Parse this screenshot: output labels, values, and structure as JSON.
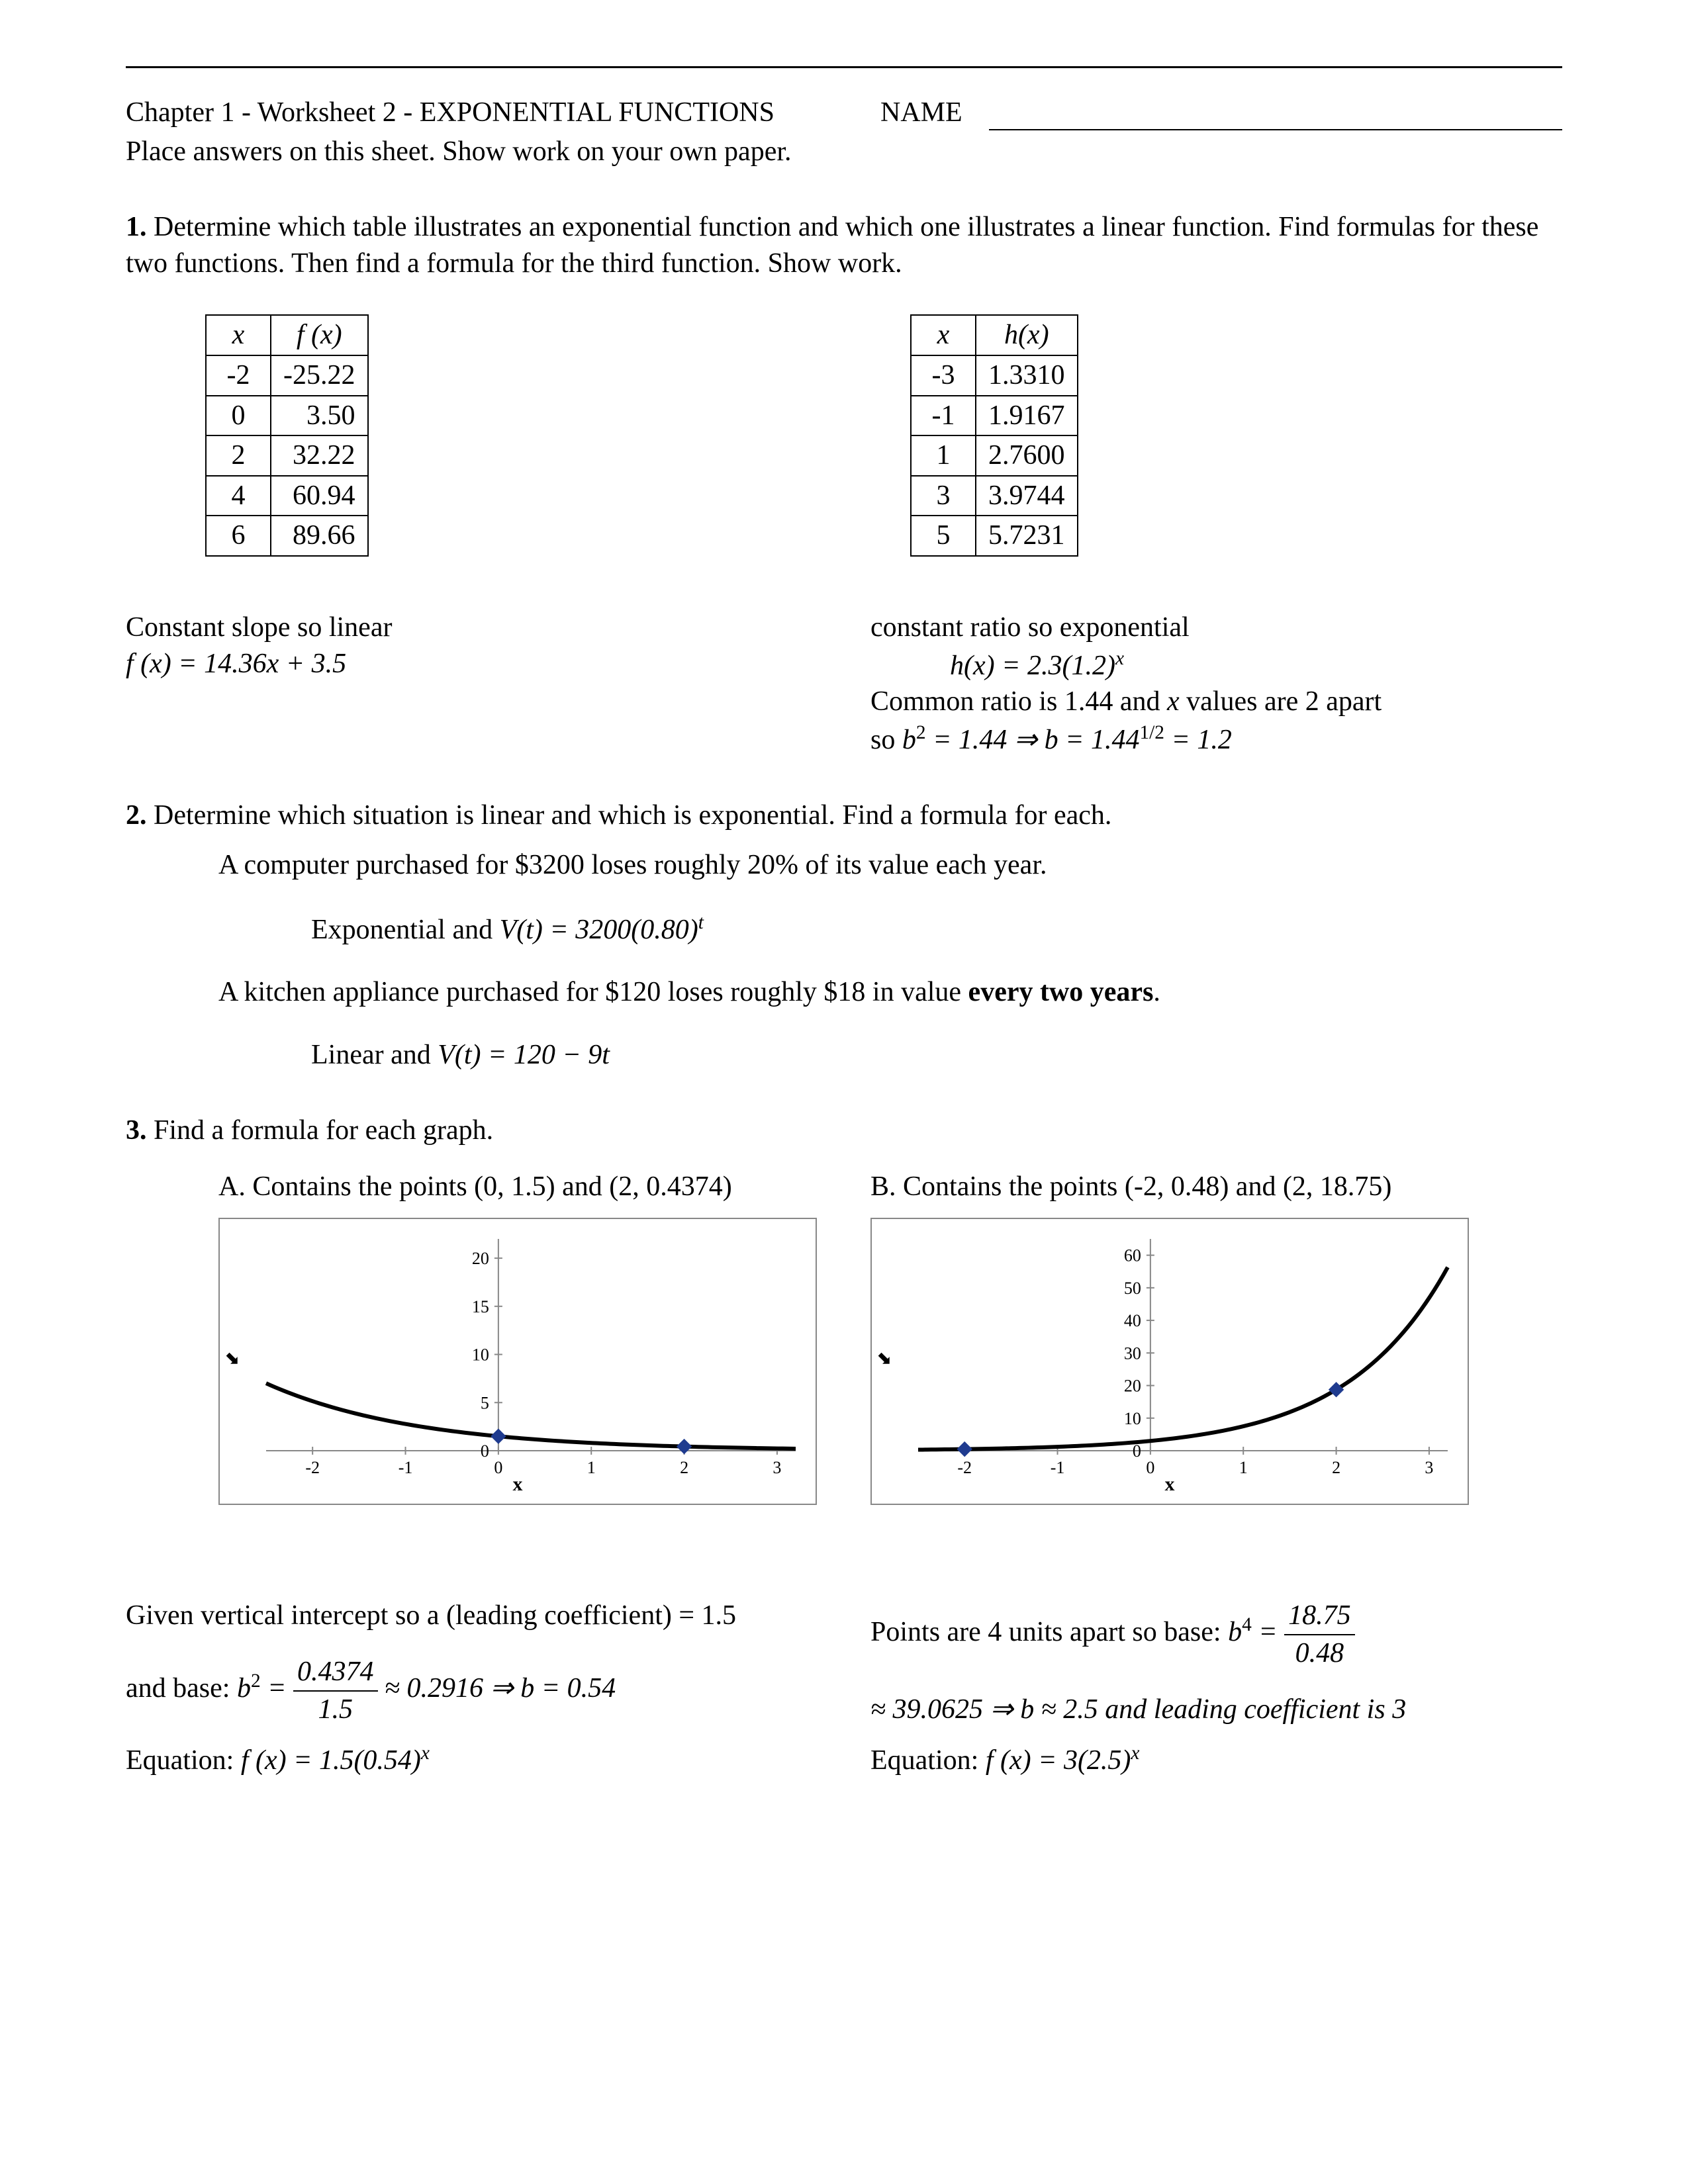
{
  "header": {
    "title": "Chapter 1 - Worksheet 2 - EXPONENTIAL FUNCTIONS",
    "name_label": "NAME",
    "instructions": "Place answers on this sheet.  Show work on your own paper."
  },
  "q1": {
    "prompt": "Determine which table illustrates an exponential function and which one illustrates a linear function. Find formulas for these two functions. Then find a formula for the third function.  Show work.",
    "tableA": {
      "x_header": "x",
      "y_header": "f (x)",
      "rows": [
        [
          "-2",
          "-25.22"
        ],
        [
          "0",
          "3.50"
        ],
        [
          "2",
          "32.22"
        ],
        [
          "4",
          "60.94"
        ],
        [
          "6",
          "89.66"
        ]
      ]
    },
    "tableB": {
      "x_header": "x",
      "y_header": "h(x)",
      "rows": [
        [
          "-3",
          "1.3310"
        ],
        [
          "-1",
          "1.9167"
        ],
        [
          "1",
          "2.7600"
        ],
        [
          "3",
          "3.9744"
        ],
        [
          "5",
          "5.7231"
        ]
      ]
    },
    "ansA_line1": "Constant slope so linear",
    "ansA_line2": "f (x) = 14.36x + 3.5",
    "ansB_line1": "constant ratio so exponential",
    "ansB_line2_prefix": "h(x) = 2.3(1.2)",
    "ansB_line2_sup": "x",
    "ansB_line3_prefix": "Common ratio is 1.44 and ",
    "ansB_line3_x": "x",
    "ansB_line3_suffix": " values are 2 apart",
    "ansB_line4_prefix": "so ",
    "ansB_line4_b2": "b",
    "ansB_line4_b2sup": "2",
    "ansB_line4_mid": " = 1.44 ⇒ b = 1.44",
    "ansB_line4_halfsup": "1/2",
    "ansB_line4_end": " = 1.2"
  },
  "q2": {
    "prompt": "Determine which situation is linear and which is exponential. Find a formula for each.",
    "partA": "A computer purchased for $3200 loses roughly 20% of its value each year.",
    "ansA_prefix": "Exponential and ",
    "ansA_eq": "V(t) = 3200(0.80)",
    "ansA_sup": "t",
    "partB_prefix": "A kitchen appliance purchased for $120 loses roughly $18 in value ",
    "partB_bold": "every two years",
    "partB_suffix": ".",
    "ansB_prefix": "Linear and ",
    "ansB_eq": "V(t) = 120 − 9t"
  },
  "q3": {
    "prompt": "Find a formula for each graph.",
    "labelA": "A. Contains the points (0, 1.5) and (2, 0.4374)",
    "labelB": "B. Contains the points (-2, 0.48) and (2, 18.75)",
    "chartA": {
      "xticks": [
        -2,
        -1,
        0,
        1,
        2,
        3
      ],
      "yticks": [
        0,
        5,
        10,
        15,
        20
      ],
      "ylim": [
        0,
        22
      ],
      "xlim": [
        -2.5,
        3.2
      ],
      "a": 1.5,
      "b": 0.54,
      "points": [
        [
          0,
          1.5
        ],
        [
          2,
          0.4374
        ]
      ],
      "xlabel": "x",
      "tick_color": "#000",
      "axis_color": "#888",
      "curve_color": "#000",
      "point_color": "#1f3b8f"
    },
    "chartB": {
      "xticks": [
        -2,
        -1,
        0,
        1,
        2,
        3
      ],
      "yticks": [
        0,
        10,
        20,
        30,
        40,
        50,
        60
      ],
      "ylim": [
        0,
        65
      ],
      "xlim": [
        -2.5,
        3.2
      ],
      "a": 3,
      "b": 2.5,
      "points": [
        [
          -2,
          0.48
        ],
        [
          2,
          18.75
        ]
      ],
      "xlabel": "x",
      "tick_color": "#000",
      "axis_color": "#888",
      "curve_color": "#000",
      "point_color": "#1f3b8f"
    },
    "solA_line1": "Given vertical intercept so a (leading coefficient) = 1.5",
    "solA_line2_prefix": "and base:  ",
    "solA_b2": "b",
    "solA_b2sup": "2",
    "solA_eqmid": " = ",
    "solA_frac_top": "0.4374",
    "solA_frac_bot": "1.5",
    "solA_line2_suffix": " ≈ 0.2916 ⇒ b = 0.54",
    "solA_line3_prefix": "Equation:   ",
    "solA_eq": "f (x) = 1.5(0.54)",
    "solA_eq_sup": "x",
    "solB_line1_prefix": "Points are 4 units apart so base:  ",
    "solB_b4": "b",
    "solB_b4sup": "4",
    "solB_eqmid": " = ",
    "solB_frac_top": "18.75",
    "solB_frac_bot": "0.48",
    "solB_line2": "≈ 39.0625 ⇒ b ≈ 2.5  and leading coefficient is 3",
    "solB_line3_prefix": "Equation:   ",
    "solB_eq": "f (x) = 3(2.5)",
    "solB_eq_sup": "x"
  }
}
